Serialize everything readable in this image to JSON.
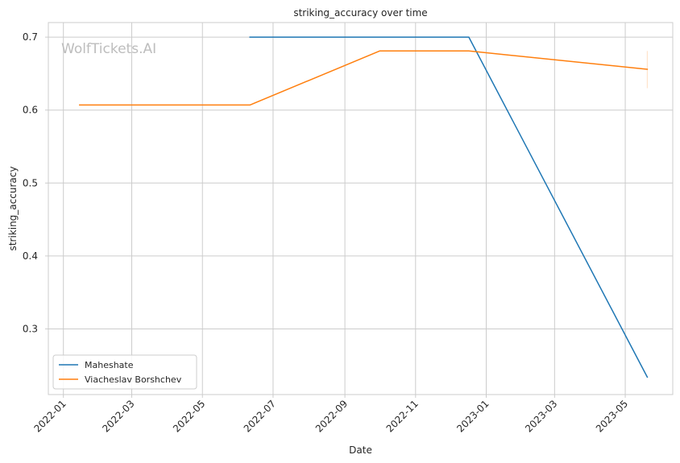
{
  "watermark": "WolfTickets.AI",
  "chart_data": {
    "type": "line",
    "title": "striking_accuracy over time",
    "xlabel": "Date",
    "ylabel": "striking_accuracy",
    "xlim": [
      "2021-12-19",
      "2023-06-11"
    ],
    "ylim": [
      0.21,
      0.72
    ],
    "x_ticks": [
      "2022-01",
      "2022-03",
      "2022-05",
      "2022-07",
      "2022-09",
      "2022-11",
      "2023-01",
      "2023-03",
      "2023-05"
    ],
    "y_ticks": [
      0.3,
      0.4,
      0.5,
      0.6,
      0.7
    ],
    "grid": true,
    "legend_position": "lower-left",
    "series": [
      {
        "name": "Maheshate",
        "color": "#1f77b4",
        "points": [
          {
            "x": "2022-06-11",
            "y": 0.7
          },
          {
            "x": "2022-12-17",
            "y": 0.7
          },
          {
            "x": "2023-05-20",
            "y": 0.234
          }
        ]
      },
      {
        "name": "Viacheslav Borshchev",
        "color": "#ff7f0e",
        "points": [
          {
            "x": "2022-01-15",
            "y": 0.607
          },
          {
            "x": "2022-06-11",
            "y": 0.607
          },
          {
            "x": "2022-10-01",
            "y": 0.681
          },
          {
            "x": "2022-12-17",
            "y": 0.681
          },
          {
            "x": "2023-05-20",
            "y": 0.656
          }
        ],
        "error_band": {
          "x": "2023-05-20",
          "low": 0.63,
          "high": 0.681
        }
      }
    ]
  }
}
